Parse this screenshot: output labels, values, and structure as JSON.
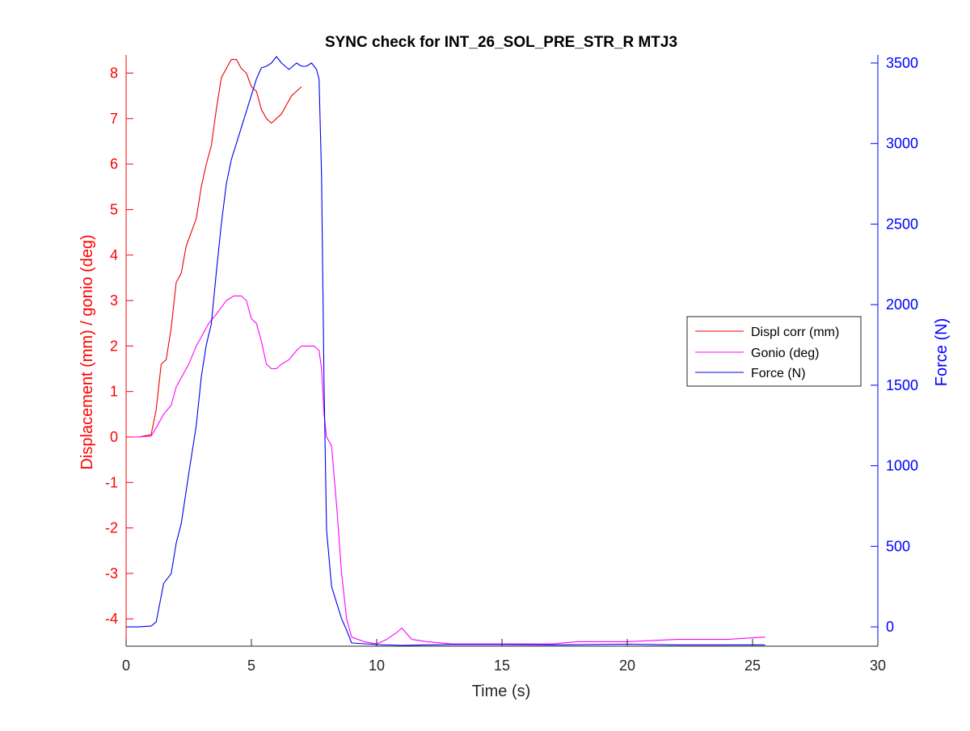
{
  "chart_data": {
    "type": "line",
    "title": "SYNC check for INT_26_SOL_PRE_STR_R MTJ3",
    "xlabel": "Time (s)",
    "ylabel_left": "Displacement (mm) / gonio (deg)",
    "ylabel_right": "Force (N)",
    "xlim": [
      0,
      30
    ],
    "ylim_left": [
      -4.6,
      8.4
    ],
    "ylim_right": [
      -120,
      3550
    ],
    "xticks": [
      "0",
      "5",
      "10",
      "15",
      "20",
      "25",
      "30"
    ],
    "yticks_left": [
      "-4",
      "-3",
      "-2",
      "-1",
      "0",
      "1",
      "2",
      "3",
      "4",
      "5",
      "6",
      "7",
      "8"
    ],
    "yticks_right": [
      "0",
      "500",
      "1000",
      "1500",
      "2000",
      "2500",
      "3000",
      "3500"
    ],
    "grid": false,
    "legend_position": "right",
    "colors": {
      "left_axis": "#ff0000",
      "right_axis": "#0000ff",
      "axes": "#262626"
    },
    "series": [
      {
        "name": "Displ corr (mm)",
        "color": "#ee0000",
        "axis": "left",
        "x": [
          0,
          0.5,
          1.0,
          1.2,
          1.4,
          1.6,
          1.8,
          2.0,
          2.2,
          2.4,
          2.6,
          2.8,
          3.0,
          3.2,
          3.4,
          3.6,
          3.8,
          4.0,
          4.2,
          4.4,
          4.6,
          4.8,
          5.0,
          5.2,
          5.4,
          5.6,
          5.8,
          6.0,
          6.2,
          6.4,
          6.6,
          6.8,
          7.0
        ],
        "y": [
          0.0,
          0.0,
          0.05,
          0.6,
          1.6,
          1.7,
          2.4,
          3.4,
          3.6,
          4.2,
          4.5,
          4.8,
          5.5,
          6.0,
          6.4,
          7.2,
          7.9,
          8.1,
          8.3,
          8.3,
          8.1,
          8.0,
          7.7,
          7.6,
          7.2,
          7.0,
          6.9,
          7.0,
          7.1,
          7.3,
          7.5,
          7.6,
          7.7
        ]
      },
      {
        "name": "Gonio (deg)",
        "color": "#ff00ff",
        "axis": "left",
        "x": [
          0,
          0.5,
          1.0,
          1.2,
          1.5,
          1.8,
          2.0,
          2.2,
          2.5,
          2.8,
          3.0,
          3.3,
          3.6,
          4.0,
          4.3,
          4.6,
          4.8,
          5.0,
          5.2,
          5.4,
          5.6,
          5.8,
          6.0,
          6.2,
          6.5,
          6.8,
          7.0,
          7.2,
          7.5,
          7.7,
          7.8,
          7.9,
          8.0,
          8.2,
          8.4,
          8.6,
          8.8,
          9.0,
          9.5,
          10.0,
          10.4,
          10.8,
          11.0,
          11.4,
          12.0,
          13.0,
          15.0,
          17.0,
          18.0,
          20.0,
          22.0,
          24.0,
          25.5
        ],
        "y": [
          0.0,
          0.0,
          0.02,
          0.2,
          0.5,
          0.7,
          1.1,
          1.3,
          1.6,
          2.0,
          2.2,
          2.5,
          2.7,
          3.0,
          3.1,
          3.1,
          3.0,
          2.6,
          2.5,
          2.1,
          1.6,
          1.5,
          1.5,
          1.6,
          1.7,
          1.9,
          2.0,
          2.0,
          2.0,
          1.9,
          1.5,
          0.5,
          0.0,
          -0.2,
          -1.5,
          -3.0,
          -4.0,
          -4.4,
          -4.5,
          -4.55,
          -4.45,
          -4.3,
          -4.2,
          -4.45,
          -4.5,
          -4.55,
          -4.55,
          -4.55,
          -4.5,
          -4.5,
          -4.45,
          -4.45,
          -4.4
        ]
      },
      {
        "name": "Force (N)",
        "color": "#0000ee",
        "axis": "right",
        "x": [
          0,
          0.5,
          1.0,
          1.2,
          1.5,
          1.8,
          2.0,
          2.2,
          2.5,
          2.8,
          3.0,
          3.2,
          3.4,
          3.6,
          3.8,
          4.0,
          4.2,
          4.4,
          4.6,
          4.8,
          5.0,
          5.2,
          5.4,
          5.6,
          5.8,
          6.0,
          6.2,
          6.5,
          6.8,
          7.0,
          7.2,
          7.4,
          7.6,
          7.7,
          7.8,
          7.9,
          8.0,
          8.2,
          8.4,
          8.6,
          8.8,
          9.0,
          10.0,
          11.0,
          12.0,
          13.0,
          15.0,
          17.0,
          20.0,
          22.0,
          25.5
        ],
        "y": [
          0,
          0,
          5,
          30,
          270,
          330,
          520,
          640,
          950,
          1250,
          1550,
          1750,
          1880,
          2200,
          2500,
          2750,
          2900,
          3000,
          3100,
          3200,
          3300,
          3400,
          3470,
          3480,
          3500,
          3540,
          3500,
          3460,
          3500,
          3480,
          3480,
          3500,
          3460,
          3400,
          2800,
          1500,
          600,
          250,
          150,
          50,
          -20,
          -100,
          -110,
          -115,
          -112,
          -110,
          -110,
          -112,
          -108,
          -112,
          -112
        ]
      }
    ]
  }
}
